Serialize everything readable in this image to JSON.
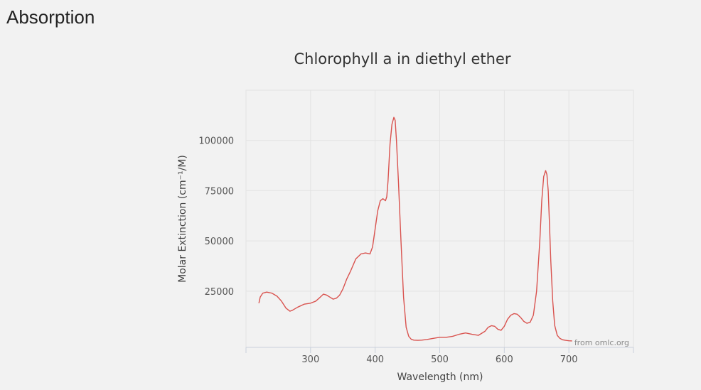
{
  "section_heading": "Absorption",
  "colors": {
    "background": "#f2f2f2",
    "grid": "#e3e3e3",
    "axis": "#c9d0dc",
    "series": "#d9534f"
  },
  "chart_data": {
    "type": "line",
    "title": "Chlorophyll a in diethyl ether",
    "xlabel": "Wavelength (nm)",
    "ylabel": "Molar Extinction (cm⁻¹/M)",
    "xlim": [
      200,
      800
    ],
    "ylim": [
      -3000,
      125000
    ],
    "x_ticks": [
      300,
      400,
      500,
      600,
      700
    ],
    "y_ticks": [
      25000,
      50000,
      75000,
      100000
    ],
    "x_tick_labels": [
      "300",
      "400",
      "500",
      "600",
      "700"
    ],
    "y_tick_labels": [
      "25000",
      "50000",
      "75000",
      "100000"
    ],
    "grid": true,
    "credit": "from omlc.org",
    "series": [
      {
        "color": "#d9534f",
        "x": [
          220,
          222,
          226,
          232,
          240,
          248,
          255,
          262,
          268,
          272,
          280,
          290,
          300,
          308,
          315,
          320,
          325,
          330,
          335,
          340,
          345,
          350,
          356,
          362,
          370,
          378,
          385,
          392,
          396,
          400,
          404,
          408,
          412,
          416,
          418,
          420,
          423,
          426,
          429,
          431,
          433,
          436,
          440,
          444,
          448,
          452,
          456,
          460,
          466,
          472,
          480,
          490,
          500,
          510,
          520,
          530,
          540,
          550,
          560,
          570,
          575,
          580,
          585,
          590,
          595,
          600,
          605,
          610,
          615,
          620,
          625,
          630,
          635,
          640,
          645,
          650,
          655,
          658,
          661,
          664,
          666,
          668,
          670,
          672,
          675,
          678,
          682,
          686,
          690,
          695,
          700,
          705
        ],
        "y": [
          19000,
          22000,
          24000,
          24500,
          24000,
          22500,
          20000,
          16500,
          15000,
          15500,
          17000,
          18500,
          19000,
          20000,
          22000,
          23500,
          23000,
          22000,
          21000,
          21500,
          23000,
          26000,
          31000,
          35000,
          41000,
          43500,
          44000,
          43500,
          47000,
          56000,
          65000,
          70000,
          71000,
          70000,
          72000,
          80000,
          98000,
          108000,
          111500,
          110000,
          100000,
          80000,
          50000,
          22000,
          7000,
          2500,
          1000,
          600,
          500,
          600,
          900,
          1500,
          2000,
          2000,
          2500,
          3500,
          4200,
          3500,
          3000,
          5000,
          7000,
          7800,
          7500,
          6000,
          5500,
          7500,
          11000,
          13000,
          13800,
          13500,
          12000,
          10000,
          9000,
          9500,
          13000,
          25000,
          50000,
          70000,
          82000,
          85000,
          83000,
          75000,
          58000,
          40000,
          20000,
          8000,
          3000,
          1500,
          800,
          500,
          300,
          200
        ]
      }
    ]
  }
}
